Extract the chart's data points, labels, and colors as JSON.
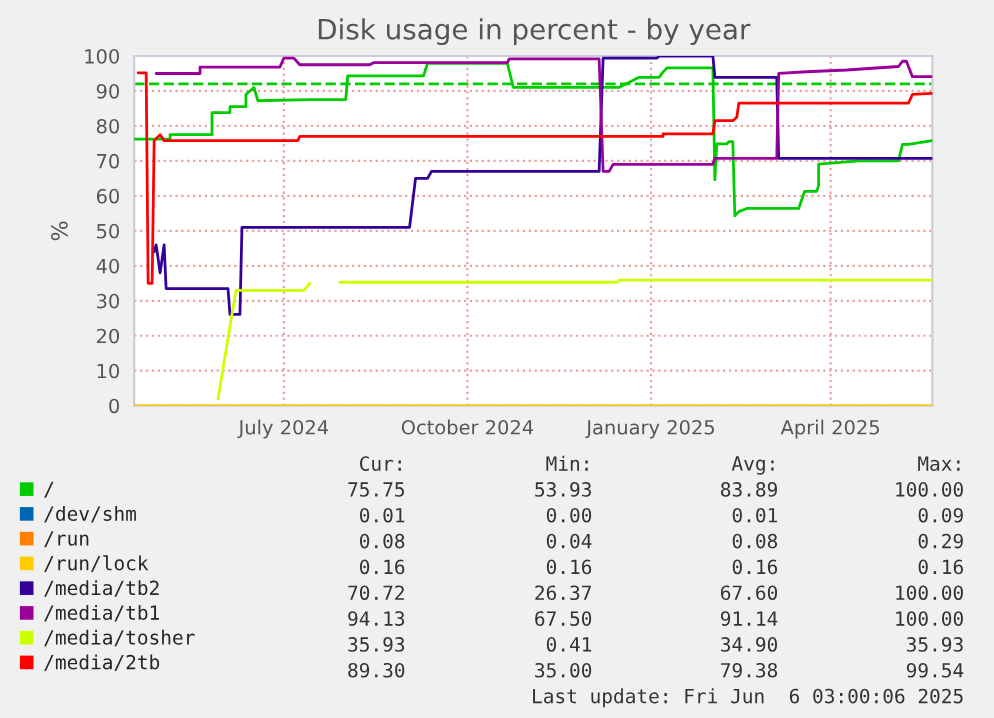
{
  "chart_data": {
    "type": "line",
    "title": "Disk usage in percent - by year",
    "ylabel": "%",
    "xlim": [
      "2024-05-02",
      "2025-06-06"
    ],
    "xticks": [
      {
        "value": "2024-07-16",
        "label": "July 2024"
      },
      {
        "value": "2024-10-16",
        "label": "October 2024"
      },
      {
        "value": "2025-01-16",
        "label": "January 2025"
      },
      {
        "value": "2025-04-16",
        "label": "April 2025"
      }
    ],
    "ylim": [
      0,
      100
    ],
    "yticks": [
      0,
      10,
      20,
      30,
      40,
      50,
      60,
      70,
      80,
      90,
      100
    ],
    "grid": true,
    "legend": "bottom",
    "marker": "none",
    "line_style": "solid",
    "ref_lines": [
      {
        "axis": "y",
        "value": 92,
        "color": "#00cc00",
        "line_style": "dashed"
      }
    ],
    "series": [
      {
        "name": "/",
        "color": "#00cc00",
        "x": [
          "2024-05-02",
          "2024-05-20",
          "2024-05-20",
          "2024-06-10",
          "2024-06-10",
          "2024-06-19",
          "2024-06-19",
          "2024-06-27",
          "2024-06-27",
          "2024-07-01",
          "2024-07-03",
          "2024-07-29",
          "2024-08-16",
          "2024-08-17",
          "2024-09-24",
          "2024-09-26",
          "2024-11-05",
          "2024-11-08",
          "2024-12-31",
          "2025-01-10",
          "2025-01-20",
          "2025-01-22",
          "2025-01-24",
          "2025-02-16",
          "2025-02-17",
          "2025-02-18",
          "2025-02-23",
          "2025-02-24",
          "2025-02-26",
          "2025-02-27",
          "2025-03-01",
          "2025-03-05",
          "2025-03-31",
          "2025-04-03",
          "2025-04-09",
          "2025-04-10",
          "2025-04-10",
          "2025-04-30",
          "2025-05-20",
          "2025-05-22",
          "2025-05-25",
          "2025-06-06"
        ],
        "values": [
          76.2,
          76.2,
          77.5,
          77.5,
          83.8,
          83.8,
          85.5,
          85.5,
          89,
          91,
          87.2,
          87.5,
          87.5,
          94.3,
          94.3,
          97.9,
          97.9,
          91,
          91,
          93.9,
          93.9,
          95.4,
          96.6,
          96.6,
          64.6,
          74.9,
          74.9,
          75.5,
          75.5,
          54.3,
          55.5,
          56.4,
          56.4,
          61.3,
          61.3,
          63,
          69.1,
          70,
          70,
          74.7,
          74.7,
          75.8
        ]
      },
      {
        "name": "/dev/shm",
        "color": "#0066b3"
      },
      {
        "name": "/run",
        "color": "#ff8000"
      },
      {
        "name": "/run/lock",
        "color": "#ffcc00",
        "x": [
          "2024-05-02",
          "2025-06-06"
        ],
        "values": [
          0,
          0
        ]
      },
      {
        "name": "/media/tb2",
        "color": "#330099",
        "x": [
          "2024-05-12",
          "2024-05-13",
          "2024-05-15",
          "2024-05-17",
          "2024-05-18",
          "2024-06-18",
          "2024-06-19",
          "2024-06-24",
          "2024-06-25",
          "2024-09-17",
          "2024-09-20",
          "2024-09-26",
          "2024-09-28",
          "2024-12-21",
          "2024-12-23",
          "2025-01-19",
          "2025-01-20",
          "2025-02-16",
          "2025-02-17",
          "2025-03-20",
          "2025-03-21",
          "2025-06-06"
        ],
        "values": [
          44,
          46,
          38,
          46,
          33.5,
          33.5,
          26.1,
          26.1,
          51,
          51,
          65,
          65,
          67,
          67,
          99.4,
          99.4,
          100,
          100,
          93.9,
          93.9,
          70.7,
          70.7
        ]
      },
      {
        "name": "/media/tb1",
        "color": "#990099",
        "x": [
          "2024-05-13",
          "2024-06-04",
          "2024-06-04",
          "2024-07-14",
          "2024-07-16",
          "2024-07-21",
          "2024-07-24",
          "2024-08-28",
          "2024-08-30",
          "2024-11-05",
          "2024-11-06",
          "2024-12-21",
          "2024-12-23",
          "2024-12-26",
          "2024-12-28",
          "2025-02-16",
          "2025-02-17",
          "2025-03-20",
          "2025-03-21",
          "2025-04-04",
          "2025-04-24",
          "2025-05-20",
          "2025-05-22",
          "2025-05-24",
          "2025-05-27",
          "2025-06-06"
        ],
        "values": [
          95,
          95,
          96.8,
          96.8,
          99.4,
          99.4,
          97.5,
          97.5,
          98.1,
          98.1,
          99.2,
          99.2,
          67,
          67,
          69,
          69,
          70.7,
          70.7,
          95,
          95.5,
          96,
          97,
          98.5,
          98.5,
          94.1,
          94.1
        ]
      },
      {
        "name": "/media/tosher",
        "color": "#ccff00",
        "x": [
          "2024-06-13",
          "2024-06-22",
          "2024-07-26",
          "2024-07-29",
          "2024-07-30",
          "2024-08-13",
          "2024-12-30",
          "2024-12-31",
          "2025-06-06"
        ],
        "values": [
          1.9,
          33,
          33,
          35,
          null,
          35.3,
          35.3,
          35.9,
          35.9
        ]
      },
      {
        "name": "/media/2tb",
        "color": "#ff0000",
        "x": [
          "2024-05-04",
          "2024-05-08",
          "2024-05-09",
          "2024-05-11",
          "2024-05-12",
          "2024-05-15",
          "2024-05-17",
          "2024-07-23",
          "2024-07-24",
          "2025-01-22",
          "2025-01-22",
          "2025-02-16",
          "2025-02-17",
          "2025-02-26",
          "2025-02-28",
          "2025-03-01",
          "2025-05-25",
          "2025-05-27",
          "2025-06-06"
        ],
        "values": [
          95.2,
          95.2,
          35,
          35,
          75.8,
          77.5,
          75.8,
          75.8,
          77,
          77,
          77.7,
          77.7,
          81.5,
          81.5,
          82.5,
          86.5,
          86.5,
          89,
          89.3
        ]
      }
    ],
    "annotations": [
      "Cur:",
      "Min:",
      "Avg:",
      "Max:",
      "75.75",
      "53.93",
      "83.89",
      "100.00",
      "0.01",
      "0.00",
      "0.01",
      "0.09",
      "0.08",
      "0.04",
      "0.08",
      "0.29",
      "0.16",
      "0.16",
      "0.16",
      "0.16",
      "70.72",
      "26.37",
      "67.60",
      "100.00",
      "94.13",
      "67.50",
      "91.14",
      "100.00",
      "35.93",
      "0.41",
      "34.90",
      "35.93",
      "89.30",
      "35.00",
      "79.38",
      "99.54",
      "Last update: Fri Jun  6 03:00:06 2025"
    ]
  }
}
